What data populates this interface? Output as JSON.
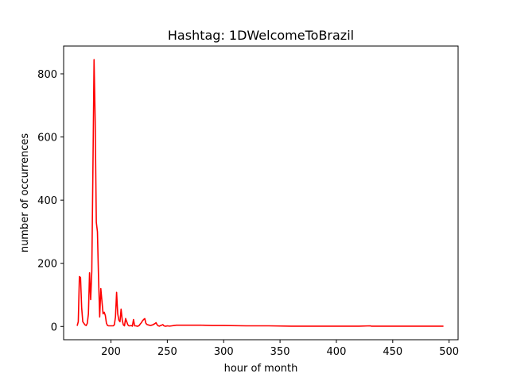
{
  "chart_data": {
    "type": "line",
    "title": "Hashtag: 1DWelcomeToBrazil",
    "xlabel": "hour of month",
    "ylabel": "number of occurrences",
    "xlim": [
      158,
      508
    ],
    "ylim": [
      -42,
      888
    ],
    "xticks": [
      200,
      250,
      300,
      350,
      400,
      450,
      500
    ],
    "yticks": [
      0,
      200,
      400,
      600,
      800
    ],
    "grid": false,
    "legend": "none",
    "series": [
      {
        "color": "#ff0000",
        "x": [
          170,
          171,
          172,
          173,
          174,
          175,
          176,
          177,
          178,
          179,
          180,
          181,
          182,
          183,
          184,
          185,
          186,
          187,
          188,
          189,
          190,
          191,
          192,
          193,
          194,
          195,
          196,
          197,
          198,
          199,
          200,
          201,
          202,
          203,
          204,
          205,
          206,
          207,
          208,
          209,
          210,
          211,
          212,
          213,
          214,
          215,
          216,
          217,
          218,
          219,
          220,
          221,
          222,
          223,
          224,
          225,
          226,
          227,
          228,
          229,
          230,
          231,
          232,
          233,
          234,
          235,
          236,
          237,
          238,
          239,
          240,
          241,
          242,
          243,
          244,
          245,
          246,
          247,
          248,
          249,
          250,
          252,
          254,
          256,
          258,
          260,
          265,
          270,
          280,
          290,
          300,
          320,
          340,
          360,
          380,
          400,
          420,
          430,
          431,
          440,
          460,
          480,
          495
        ],
        "y": [
          2,
          15,
          158,
          155,
          60,
          15,
          10,
          5,
          3,
          10,
          40,
          170,
          85,
          175,
          500,
          845,
          650,
          330,
          300,
          150,
          30,
          120,
          80,
          40,
          45,
          35,
          10,
          3,
          2,
          2,
          2,
          2,
          2,
          5,
          30,
          108,
          40,
          20,
          15,
          55,
          20,
          5,
          2,
          25,
          15,
          5,
          2,
          2,
          3,
          1,
          22,
          2,
          2,
          1,
          1,
          3,
          8,
          12,
          18,
          22,
          25,
          10,
          6,
          5,
          4,
          3,
          4,
          5,
          7,
          9,
          12,
          5,
          2,
          1,
          3,
          4,
          6,
          2,
          1,
          1,
          2,
          1,
          2,
          3,
          4,
          4,
          4,
          4,
          4,
          3,
          3,
          2,
          2,
          1,
          1,
          1,
          1,
          2,
          1,
          1,
          1,
          1,
          1
        ]
      }
    ]
  }
}
